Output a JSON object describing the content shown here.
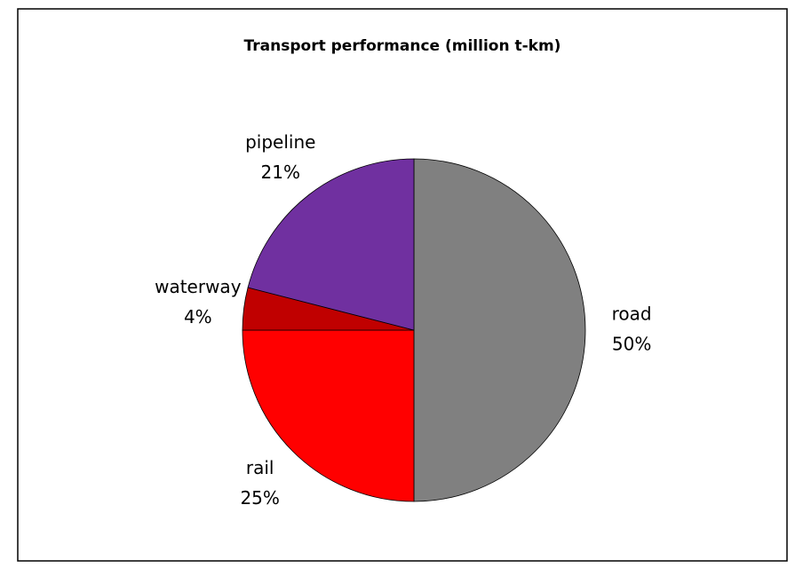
{
  "chart_data": {
    "type": "pie",
    "title": "Transport performance (million t-km)",
    "categories": [
      "road",
      "rail",
      "waterway",
      "pipeline"
    ],
    "values": [
      50,
      25,
      4,
      21
    ],
    "value_labels": [
      "50%",
      "25%",
      "4%",
      "21%"
    ],
    "colors": [
      "#808080",
      "#ff0000",
      "#c00000",
      "#7030a0"
    ]
  }
}
